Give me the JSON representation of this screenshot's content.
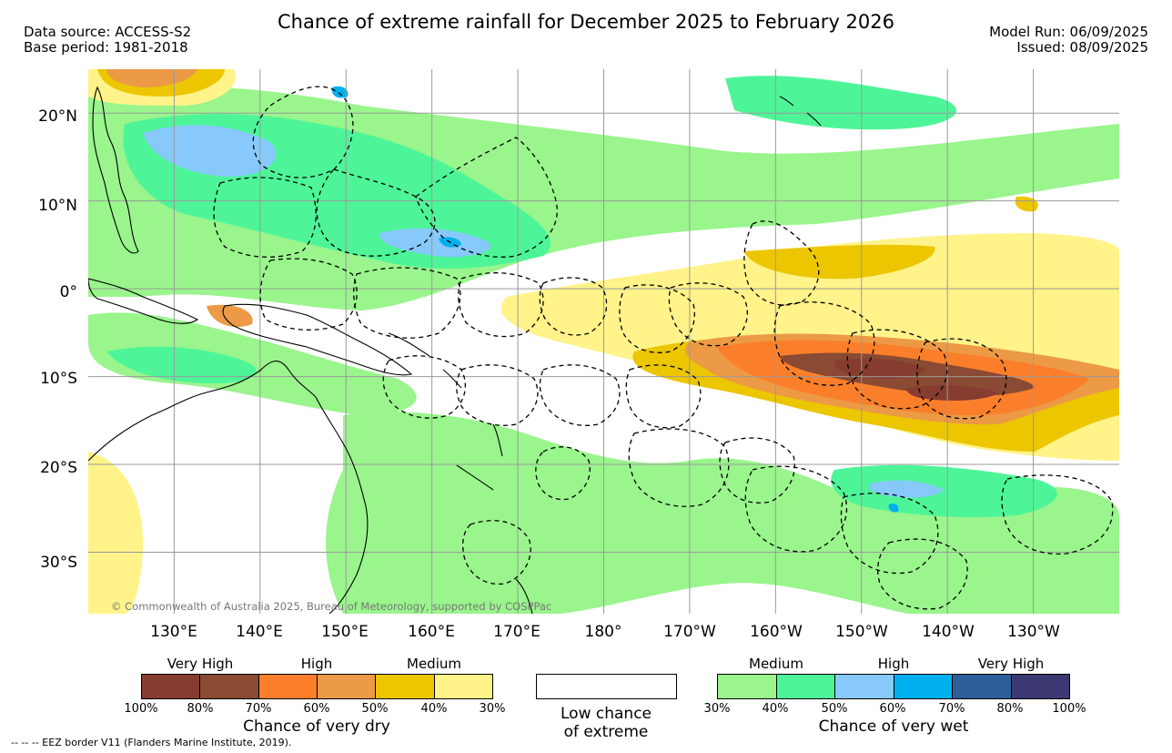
{
  "header": {
    "title": "Chance of extreme rainfall for December 2025 to February 2026",
    "data_source": "Data source: ACCESS-S2",
    "base_period": "Base period: 1981-2018",
    "model_run": "Model Run: 06/09/2025",
    "issued": "Issued: 08/09/2025"
  },
  "map": {
    "lat_labels": [
      "20°N",
      "10°N",
      "0°",
      "10°S",
      "20°S",
      "30°S"
    ],
    "lon_labels": [
      "130°E",
      "140°E",
      "150°E",
      "160°E",
      "170°E",
      "180°",
      "170°W",
      "160°W",
      "150°W",
      "140°W",
      "130°W"
    ],
    "copyright": "© Commonwealth of Australia 2025, Bureau of Meteorology, supported by COSPPac",
    "extent": {
      "lon_west": 120,
      "lon_east": 240,
      "lat_north": 25,
      "lat_south": -37
    },
    "colors": {
      "wet_30": "#99f58c",
      "wet_40": "#4df598",
      "wet_50": "#87c9fa",
      "wet_60": "#00b0ee",
      "dry_30": "#fff38a",
      "dry_40": "#ecc600",
      "dry_50": "#ec9a46",
      "dry_60": "#fb7f2a",
      "dry_70": "#8a4a33",
      "dry_80": "#873c30"
    }
  },
  "legend": {
    "dry": {
      "caption": "Chance of very dry",
      "levels": [
        "Very High",
        "High",
        "Medium"
      ],
      "ticks": [
        "100%",
        "80%",
        "70%",
        "60%",
        "50%",
        "40%",
        "30%"
      ],
      "colors": [
        "#873c30",
        "#8a4a33",
        "#fb7f2a",
        "#ec9a46",
        "#ecc600",
        "#fff38a"
      ]
    },
    "neutral": {
      "caption_line1": "Low chance",
      "caption_line2": "of extreme"
    },
    "wet": {
      "caption": "Chance of very wet",
      "levels": [
        "Medium",
        "High",
        "Very High"
      ],
      "ticks": [
        "30%",
        "40%",
        "50%",
        "60%",
        "70%",
        "80%",
        "100%"
      ],
      "colors": [
        "#99f58c",
        "#4df598",
        "#87c9fa",
        "#00b0ee",
        "#2d5e9a",
        "#3b3872"
      ]
    }
  },
  "footer": {
    "eez_note": "--  --  -- EEZ border V11 (Flanders Marine Institute, 2019)."
  }
}
